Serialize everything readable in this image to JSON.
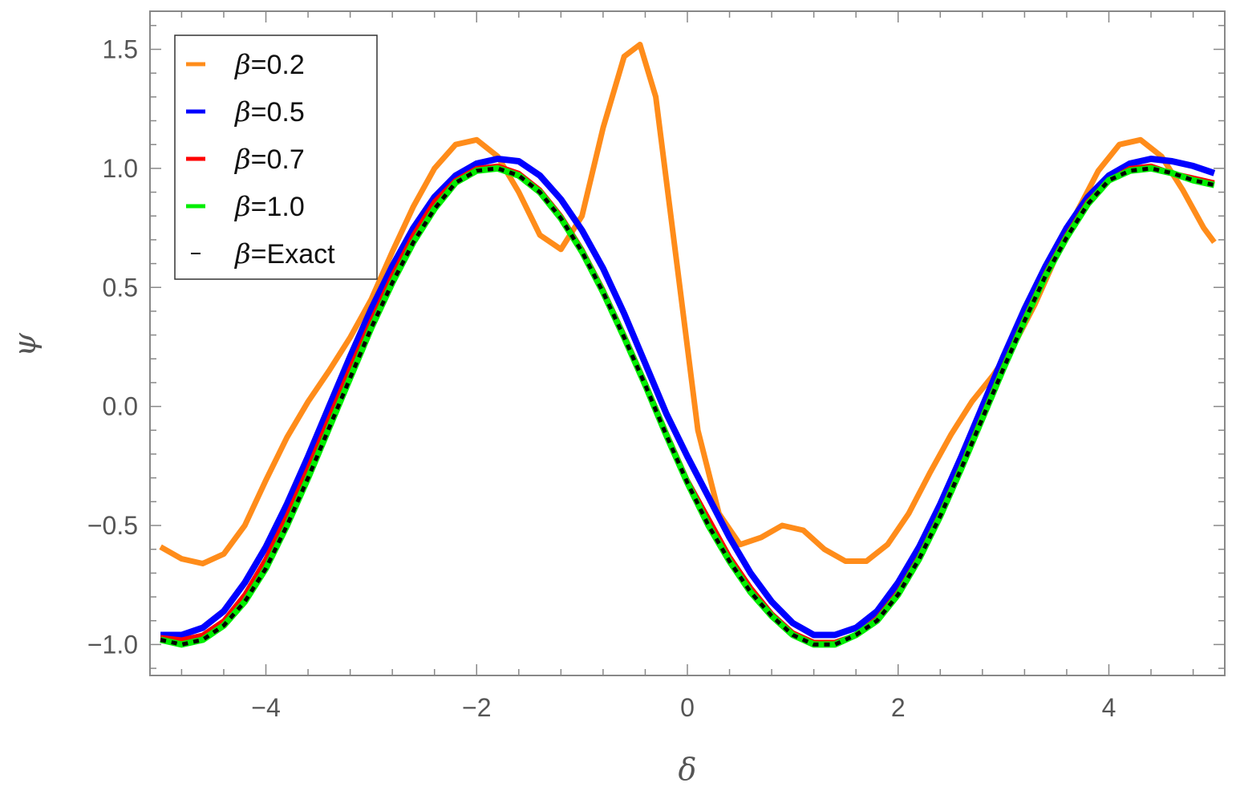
{
  "chart_data": {
    "type": "line",
    "xlabel": "δ",
    "ylabel": "ψ",
    "xlim": [
      -5.1,
      5.1
    ],
    "ylim": [
      -1.13,
      1.66
    ],
    "x_ticks": [
      -4,
      -2,
      0,
      2,
      4
    ],
    "x_tick_labels": [
      "−4",
      "−2",
      "0",
      "2",
      "4"
    ],
    "y_ticks": [
      -1.0,
      -0.5,
      0.0,
      0.5,
      1.0,
      1.5
    ],
    "y_tick_labels": [
      "−1.0",
      "−0.5",
      "0.0",
      "0.5",
      "1.0",
      "1.5"
    ],
    "grid": false,
    "legend_position": "top-left",
    "legend_prefix": "β",
    "series": [
      {
        "name": "=0.2",
        "color": "#ff8c1a",
        "style": "solid",
        "x": [
          -5.0,
          -4.8,
          -4.6,
          -4.4,
          -4.2,
          -4.0,
          -3.8,
          -3.6,
          -3.4,
          -3.2,
          -3.0,
          -2.8,
          -2.6,
          -2.4,
          -2.2,
          -2.0,
          -1.8,
          -1.6,
          -1.4,
          -1.2,
          -1.0,
          -0.8,
          -0.6,
          -0.45,
          -0.3,
          -0.1,
          0.1,
          0.3,
          0.5,
          0.7,
          0.9,
          1.1,
          1.3,
          1.5,
          1.7,
          1.9,
          2.1,
          2.3,
          2.5,
          2.7,
          2.9,
          3.1,
          3.3,
          3.5,
          3.7,
          3.9,
          4.1,
          4.3,
          4.5,
          4.7,
          4.9,
          5.0
        ],
        "y": [
          -0.59,
          -0.64,
          -0.66,
          -0.62,
          -0.5,
          -0.31,
          -0.13,
          0.02,
          0.15,
          0.29,
          0.45,
          0.65,
          0.84,
          1.0,
          1.1,
          1.12,
          1.05,
          0.9,
          0.72,
          0.66,
          0.8,
          1.17,
          1.47,
          1.52,
          1.3,
          0.6,
          -0.1,
          -0.45,
          -0.58,
          -0.55,
          -0.5,
          -0.52,
          -0.6,
          -0.65,
          -0.65,
          -0.58,
          -0.45,
          -0.28,
          -0.12,
          0.02,
          0.13,
          0.26,
          0.43,
          0.63,
          0.82,
          0.99,
          1.1,
          1.12,
          1.05,
          0.91,
          0.75,
          0.69
        ]
      },
      {
        "name": "=0.5",
        "color": "#0000ff",
        "style": "solid",
        "x": [
          -5.0,
          -4.8,
          -4.6,
          -4.4,
          -4.2,
          -4.0,
          -3.8,
          -3.6,
          -3.4,
          -3.2,
          -3.0,
          -2.8,
          -2.6,
          -2.4,
          -2.2,
          -2.0,
          -1.8,
          -1.6,
          -1.4,
          -1.2,
          -1.0,
          -0.8,
          -0.6,
          -0.4,
          -0.2,
          0.0,
          0.2,
          0.4,
          0.6,
          0.8,
          1.0,
          1.2,
          1.4,
          1.6,
          1.8,
          2.0,
          2.2,
          2.4,
          2.6,
          2.8,
          3.0,
          3.2,
          3.4,
          3.6,
          3.8,
          4.0,
          4.2,
          4.4,
          4.6,
          4.8,
          5.0
        ],
        "y": [
          -0.96,
          -0.96,
          -0.93,
          -0.86,
          -0.74,
          -0.59,
          -0.41,
          -0.21,
          0.0,
          0.21,
          0.41,
          0.59,
          0.75,
          0.88,
          0.97,
          1.02,
          1.04,
          1.03,
          0.97,
          0.87,
          0.74,
          0.58,
          0.39,
          0.18,
          -0.03,
          -0.21,
          -0.38,
          -0.55,
          -0.7,
          -0.82,
          -0.91,
          -0.96,
          -0.96,
          -0.93,
          -0.86,
          -0.74,
          -0.59,
          -0.41,
          -0.21,
          0.0,
          0.21,
          0.41,
          0.59,
          0.75,
          0.88,
          0.97,
          1.02,
          1.04,
          1.03,
          1.01,
          0.98
        ]
      },
      {
        "name": "=0.7",
        "color": "#ff0000",
        "style": "solid",
        "x": [
          -5.0,
          -4.8,
          -4.6,
          -4.4,
          -4.2,
          -4.0,
          -3.8,
          -3.6,
          -3.4,
          -3.2,
          -3.0,
          -2.8,
          -2.6,
          -2.4,
          -2.2,
          -2.0,
          -1.8,
          -1.6,
          -1.4,
          -1.2,
          -1.0,
          -0.8,
          -0.6,
          -0.4,
          -0.2,
          0.0,
          0.2,
          0.4,
          0.6,
          0.8,
          1.0,
          1.2,
          1.4,
          1.6,
          1.8,
          2.0,
          2.2,
          2.4,
          2.6,
          2.8,
          3.0,
          3.2,
          3.4,
          3.6,
          3.8,
          4.0,
          4.2,
          4.4,
          4.6,
          4.8,
          5.0
        ],
        "y": [
          -0.97,
          -0.98,
          -0.96,
          -0.9,
          -0.79,
          -0.64,
          -0.46,
          -0.26,
          -0.05,
          0.16,
          0.36,
          0.55,
          0.72,
          0.86,
          0.95,
          1.0,
          1.01,
          0.98,
          0.91,
          0.8,
          0.66,
          0.49,
          0.3,
          0.1,
          -0.11,
          -0.31,
          -0.47,
          -0.63,
          -0.76,
          -0.87,
          -0.95,
          -0.99,
          -0.99,
          -0.96,
          -0.89,
          -0.78,
          -0.63,
          -0.45,
          -0.25,
          -0.04,
          0.17,
          0.37,
          0.56,
          0.72,
          0.86,
          0.95,
          1.0,
          1.01,
          0.98,
          0.96,
          0.94
        ]
      },
      {
        "name": "=1.0",
        "color": "#00ee00",
        "style": "solid",
        "x": [
          -5.0,
          -4.8,
          -4.6,
          -4.4,
          -4.2,
          -4.0,
          -3.8,
          -3.6,
          -3.4,
          -3.2,
          -3.0,
          -2.8,
          -2.6,
          -2.4,
          -2.2,
          -2.0,
          -1.8,
          -1.6,
          -1.4,
          -1.2,
          -1.0,
          -0.8,
          -0.6,
          -0.4,
          -0.2,
          0.0,
          0.2,
          0.4,
          0.6,
          0.8,
          1.0,
          1.2,
          1.4,
          1.6,
          1.8,
          2.0,
          2.2,
          2.4,
          2.6,
          2.8,
          3.0,
          3.2,
          3.4,
          3.6,
          3.8,
          4.0,
          4.2,
          4.4,
          4.6,
          4.8,
          5.0
        ],
        "y": [
          -0.98,
          -1.0,
          -0.98,
          -0.92,
          -0.82,
          -0.68,
          -0.5,
          -0.3,
          -0.09,
          0.12,
          0.33,
          0.52,
          0.69,
          0.83,
          0.94,
          0.99,
          1.0,
          0.97,
          0.9,
          0.79,
          0.65,
          0.48,
          0.29,
          0.09,
          -0.12,
          -0.32,
          -0.5,
          -0.65,
          -0.78,
          -0.88,
          -0.96,
          -1.0,
          -1.0,
          -0.96,
          -0.9,
          -0.79,
          -0.64,
          -0.46,
          -0.26,
          -0.05,
          0.16,
          0.36,
          0.55,
          0.71,
          0.85,
          0.95,
          0.99,
          1.0,
          0.98,
          0.95,
          0.93
        ]
      },
      {
        "name": "=Exact",
        "color": "#000000",
        "style": "dashed",
        "x": [
          -5.0,
          -4.8,
          -4.6,
          -4.4,
          -4.2,
          -4.0,
          -3.8,
          -3.6,
          -3.4,
          -3.2,
          -3.0,
          -2.8,
          -2.6,
          -2.4,
          -2.2,
          -2.0,
          -1.8,
          -1.6,
          -1.4,
          -1.2,
          -1.0,
          -0.8,
          -0.6,
          -0.4,
          -0.2,
          0.0,
          0.2,
          0.4,
          0.6,
          0.8,
          1.0,
          1.2,
          1.4,
          1.6,
          1.8,
          2.0,
          2.2,
          2.4,
          2.6,
          2.8,
          3.0,
          3.2,
          3.4,
          3.6,
          3.8,
          4.0,
          4.2,
          4.4,
          4.6,
          4.8,
          5.0
        ],
        "y": [
          -0.98,
          -1.0,
          -0.98,
          -0.92,
          -0.82,
          -0.68,
          -0.5,
          -0.3,
          -0.09,
          0.12,
          0.33,
          0.52,
          0.69,
          0.83,
          0.94,
          0.99,
          1.0,
          0.97,
          0.9,
          0.79,
          0.65,
          0.48,
          0.29,
          0.09,
          -0.12,
          -0.32,
          -0.5,
          -0.65,
          -0.78,
          -0.88,
          -0.96,
          -1.0,
          -1.0,
          -0.96,
          -0.9,
          -0.79,
          -0.64,
          -0.46,
          -0.26,
          -0.05,
          0.16,
          0.36,
          0.55,
          0.71,
          0.85,
          0.95,
          0.99,
          1.0,
          0.98,
          0.95,
          0.93
        ]
      }
    ]
  }
}
